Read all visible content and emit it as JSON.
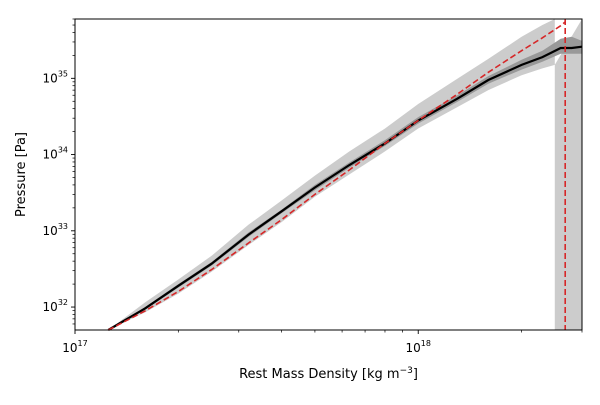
{
  "chart_data": {
    "type": "line",
    "title": "",
    "xlabel": "Rest Mass Density [kg m",
    "xlabel_sup": "−3",
    "xlabel_close": "]",
    "ylabel": "Pressure [Pa]",
    "xscale": "log",
    "yscale": "log",
    "xlim": [
      1e+17,
      3e+18
    ],
    "ylim": [
      5e+31,
      6e+35
    ],
    "grid": false,
    "legend": false,
    "x_ticks": [
      {
        "value": 1e+17,
        "base": "10",
        "exp": "17"
      },
      {
        "value": 1e+18,
        "base": "10",
        "exp": "18"
      }
    ],
    "y_ticks": [
      {
        "value": 1e+32,
        "base": "10",
        "exp": "32"
      },
      {
        "value": 1e+33,
        "base": "10",
        "exp": "33"
      },
      {
        "value": 1e+34,
        "base": "10",
        "exp": "34"
      },
      {
        "value": 1e+35,
        "base": "10",
        "exp": "35"
      }
    ],
    "series": [
      {
        "role": "median",
        "color": "#000000",
        "style": "solid",
        "x": [
          1.25e+17,
          1.6e+17,
          2e+17,
          2.5e+17,
          3.2e+17,
          4e+17,
          5e+17,
          6.3e+17,
          8e+17,
          1e+18,
          1.3e+18,
          1.6e+18,
          2e+18,
          2.3e+18,
          2.6e+18,
          2.8e+18,
          3e+18
        ],
        "y": [
          5e+31,
          9.6e+31,
          1.9e+32,
          3.7e+32,
          8.9e+32,
          1.8e+33,
          3.7e+33,
          7.3e+33,
          1.4e+34,
          2.8e+34,
          5.4e+34,
          9.5e+34,
          1.5e+35,
          1.9e+35,
          2.5e+35,
          2.5e+35,
          2.6e+35
        ]
      },
      {
        "role": "reference",
        "color": "#d62728",
        "style": "dashed",
        "x": [
          1.25e+17,
          1.6e+17,
          2e+17,
          2.5e+17,
          3.2e+17,
          4e+17,
          5e+17,
          6.3e+17,
          8e+17,
          1e+18,
          1.3e+18,
          1.6e+18,
          2e+18,
          2.3e+18,
          2.6e+18,
          2.68e+18
        ],
        "y": [
          5e+31,
          8.9e+31,
          1.6e+32,
          3.1e+32,
          6.9e+32,
          1.4e+33,
          3e+33,
          6.3e+33,
          1.4e+34,
          2.8e+34,
          6.2e+34,
          1.2e+35,
          2.3e+35,
          3.4e+35,
          4.9e+35,
          5.5e+35
        ],
        "vline_x": 2.68e+18
      }
    ],
    "bands": [
      {
        "role": "outer",
        "color": "#cccccc",
        "x": [
          1.25e+17,
          1.6e+17,
          2e+17,
          2.5e+17,
          3.2e+17,
          4e+17,
          5e+17,
          6.3e+17,
          8e+17,
          1e+18,
          1.3e+18,
          1.6e+18,
          2e+18,
          2.3e+18,
          2.5e+18
        ],
        "lower": [
          5e+31,
          8.5e+31,
          1.5e+32,
          2.9e+32,
          6.5e+32,
          1.3e+33,
          2.8e+33,
          5.5e+33,
          1.1e+34,
          2.2e+34,
          4.2e+34,
          7e+34,
          1.1e+35,
          1.35e+35,
          1.5e+35
        ],
        "upper": [
          5e+31,
          1.15e+32,
          2.3e+32,
          4.7e+32,
          1.2e+33,
          2.5e+33,
          5.3e+33,
          1.1e+34,
          2.2e+34,
          4.6e+34,
          9.9e+34,
          1.8e+35,
          3.5e+35,
          5e+35,
          6e+35
        ],
        "drop_x": [
          2.5e+18,
          3e+18
        ]
      },
      {
        "role": "inner",
        "color": "#999999",
        "x": [
          1.25e+17,
          1.6e+17,
          2e+17,
          2.5e+17,
          3.2e+17,
          4e+17,
          5e+17,
          6.3e+17,
          8e+17,
          1e+18,
          1.3e+18,
          1.6e+18,
          2e+18,
          2.3e+18,
          2.6e+18,
          2.8e+18,
          3e+18
        ],
        "lower": [
          5e+31,
          9.2e+31,
          1.8e+32,
          3.5e+32,
          8.3e+32,
          1.7e+33,
          3.4e+33,
          6.7e+33,
          1.3e+34,
          2.55e+34,
          4.9e+34,
          8.5e+34,
          1.3e+35,
          1.65e+35,
          2.1e+35,
          2.1e+35,
          2.1e+35
        ],
        "upper": [
          5e+31,
          1e+32,
          2e+32,
          3.9e+32,
          9.5e+32,
          1.9e+33,
          4e+33,
          7.9e+33,
          1.55e+34,
          3.1e+34,
          6e+34,
          1.07e+35,
          1.75e+35,
          2.3e+35,
          3.3e+35,
          3.5e+35,
          3.1e+35
        ]
      }
    ]
  }
}
